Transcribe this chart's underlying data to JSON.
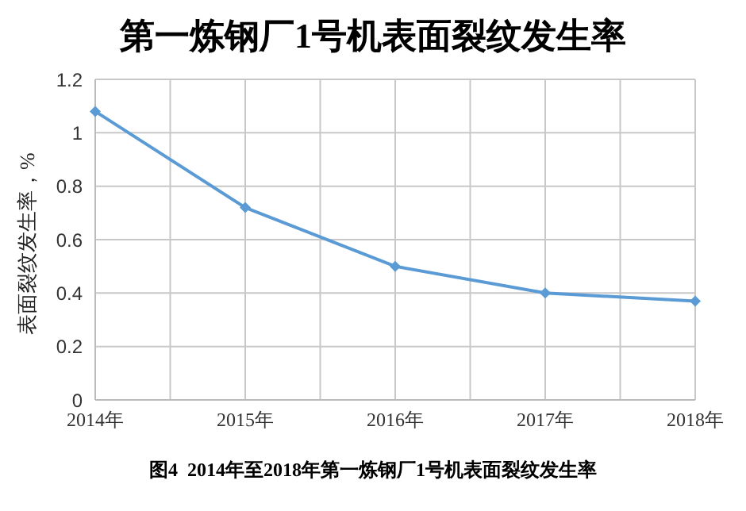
{
  "chart_data": {
    "type": "line",
    "title": "第一炼钢厂1号机表面裂纹发生率",
    "ylabel": "表面裂纹发生率，%",
    "categories": [
      "2014年",
      "2015年",
      "2016年",
      "2017年",
      "2018年"
    ],
    "series": [
      {
        "color": "#5b9bd5",
        "values": [
          1.08,
          0.72,
          0.5,
          0.4,
          0.37
        ]
      }
    ],
    "ylim": [
      0,
      1.2
    ],
    "yticks": [
      0,
      0.2,
      0.4,
      0.6,
      0.8,
      1,
      1.2
    ],
    "grid": true,
    "marker": "diamond",
    "line_style": "solid",
    "legend": false,
    "annotations": [
      "图4  2014年至2018年第一炼钢厂1号机表面裂纹发生率"
    ]
  }
}
